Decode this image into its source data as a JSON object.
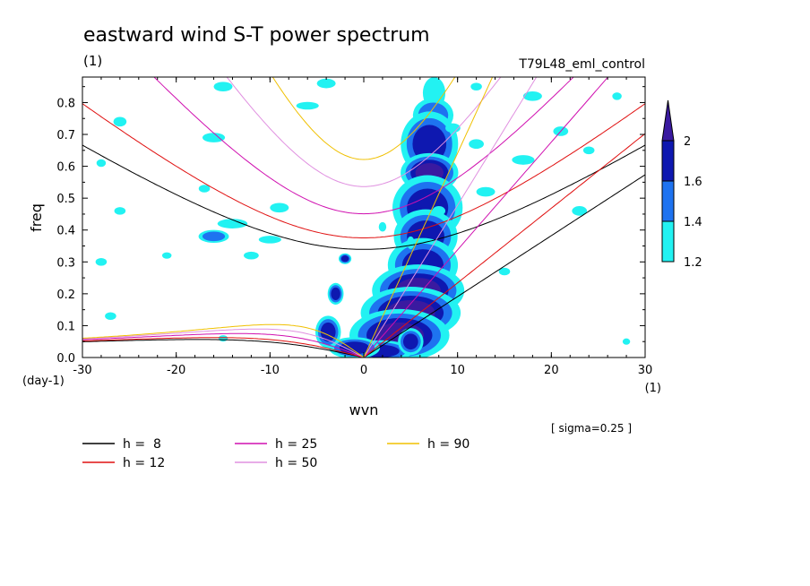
{
  "chart_data": {
    "type": "heatmap",
    "title": "eastward wind S-T power spectrum",
    "subtitle_left": "(1)",
    "subtitle_right": "T79L48_eml_control",
    "xlabel": "wvn",
    "ylabel": "freq",
    "x_unit": "(1)",
    "y_unit": "(day-1)",
    "xlim": [
      -30,
      30
    ],
    "ylim": [
      0,
      0.88
    ],
    "x_ticks": [
      -30,
      -20,
      -10,
      0,
      10,
      20,
      30
    ],
    "y_ticks": [
      0.0,
      0.1,
      0.2,
      0.3,
      0.4,
      0.5,
      0.6,
      0.7,
      0.8
    ],
    "x_tick_labels": [
      "-30",
      "-20",
      "-10",
      "0",
      "10",
      "20",
      "30"
    ],
    "y_tick_labels": [
      "0.0",
      "0.1",
      "0.2",
      "0.3",
      "0.4",
      "0.5",
      "0.6",
      "0.7",
      "0.8"
    ],
    "note": "[ sigma=0.25 ]",
    "colorbar": {
      "levels": [
        1.2,
        1.4,
        1.6,
        2
      ],
      "level_labels": [
        "1.2",
        "1.4",
        "1.6",
        "2"
      ],
      "colors": [
        "#22f2f2",
        "#1e73f0",
        "#0e18b0",
        "#3a1aa0"
      ]
    },
    "dispersion_curves": [
      {
        "label": "h =  8",
        "h": 8,
        "color": "#000000"
      },
      {
        "label": "h = 12",
        "h": 12,
        "color": "#e01010"
      },
      {
        "label": "h = 25",
        "h": 25,
        "color": "#d010b0"
      },
      {
        "label": "h = 50",
        "h": 50,
        "color": "#e090e0"
      },
      {
        "label": "h = 90",
        "h": 90,
        "color": "#f0c000"
      }
    ],
    "contour_regions": [
      {
        "x": 7.5,
        "y": 0.83,
        "rx": 1.2,
        "ry": 0.05,
        "level": 1.2
      },
      {
        "x": 7.4,
        "y": 0.76,
        "rx": 1.6,
        "ry": 0.04,
        "level": 1.4
      },
      {
        "x": 7.0,
        "y": 0.67,
        "rx": 1.8,
        "ry": 0.06,
        "level": 1.6
      },
      {
        "x": 7.0,
        "y": 0.58,
        "rx": 1.5,
        "ry": 0.03,
        "level": 2
      },
      {
        "x": 6.8,
        "y": 0.47,
        "rx": 2.2,
        "ry": 0.06,
        "level": 1.6
      },
      {
        "x": 6.6,
        "y": 0.38,
        "rx": 2.0,
        "ry": 0.05,
        "level": 1.6
      },
      {
        "x": 6.3,
        "y": 0.29,
        "rx": 2.2,
        "ry": 0.05,
        "level": 1.6
      },
      {
        "x": 5.8,
        "y": 0.21,
        "rx": 2.4,
        "ry": 0.04,
        "level": 2
      },
      {
        "x": 5.0,
        "y": 0.14,
        "rx": 2.6,
        "ry": 0.04,
        "level": 2
      },
      {
        "x": 3.8,
        "y": 0.07,
        "rx": 2.6,
        "ry": 0.04,
        "level": 2
      },
      {
        "x": 1.8,
        "y": 0.02,
        "rx": 2.0,
        "ry": 0.02,
        "level": 1.6
      },
      {
        "x": -1.0,
        "y": 0.03,
        "rx": 1.6,
        "ry": 0.02,
        "level": 1.6
      },
      {
        "x": -3.8,
        "y": 0.08,
        "rx": 0.8,
        "ry": 0.03,
        "level": 1.6
      },
      {
        "x": 5.0,
        "y": 0.05,
        "rx": 0.8,
        "ry": 0.025,
        "level": 1.6
      },
      {
        "x": -3.0,
        "y": 0.2,
        "rx": 0.5,
        "ry": 0.02,
        "level": 1.6
      },
      {
        "x": -2.0,
        "y": 0.31,
        "rx": 0.4,
        "ry": 0.01,
        "level": 1.6
      },
      {
        "x": -14.0,
        "y": 0.42,
        "rx": 1.6,
        "ry": 0.015,
        "level": 1.2
      },
      {
        "x": -16.0,
        "y": 0.38,
        "rx": 1.2,
        "ry": 0.015,
        "level": 1.4
      },
      {
        "x": -12.0,
        "y": 0.32,
        "rx": 0.8,
        "ry": 0.012,
        "level": 1.2
      },
      {
        "x": -10.0,
        "y": 0.37,
        "rx": 1.2,
        "ry": 0.012,
        "level": 1.2
      },
      {
        "x": -28.0,
        "y": 0.3,
        "rx": 0.6,
        "ry": 0.012,
        "level": 1.2
      },
      {
        "x": -26.0,
        "y": 0.46,
        "rx": 0.6,
        "ry": 0.012,
        "level": 1.2
      },
      {
        "x": -28.0,
        "y": 0.61,
        "rx": 0.5,
        "ry": 0.012,
        "level": 1.2
      },
      {
        "x": -26.0,
        "y": 0.74,
        "rx": 0.7,
        "ry": 0.015,
        "level": 1.2
      },
      {
        "x": -15.0,
        "y": 0.85,
        "rx": 1.0,
        "ry": 0.015,
        "level": 1.2
      },
      {
        "x": -16.0,
        "y": 0.69,
        "rx": 1.2,
        "ry": 0.015,
        "level": 1.2
      },
      {
        "x": -6.0,
        "y": 0.79,
        "rx": 1.2,
        "ry": 0.012,
        "level": 1.2
      },
      {
        "x": -9.0,
        "y": 0.47,
        "rx": 1.0,
        "ry": 0.015,
        "level": 1.2
      },
      {
        "x": -17.0,
        "y": 0.53,
        "rx": 0.6,
        "ry": 0.012,
        "level": 1.2
      },
      {
        "x": -21.0,
        "y": 0.32,
        "rx": 0.5,
        "ry": 0.01,
        "level": 1.2
      },
      {
        "x": -27.0,
        "y": 0.13,
        "rx": 0.6,
        "ry": 0.012,
        "level": 1.2
      },
      {
        "x": -15.0,
        "y": 0.06,
        "rx": 0.5,
        "ry": 0.01,
        "level": 1.2
      },
      {
        "x": -4.0,
        "y": 0.86,
        "rx": 1.0,
        "ry": 0.015,
        "level": 1.2
      },
      {
        "x": 2.0,
        "y": 0.41,
        "rx": 0.4,
        "ry": 0.015,
        "level": 1.2
      },
      {
        "x": 5.0,
        "y": 0.36,
        "rx": 0.4,
        "ry": 0.02,
        "level": 1.2
      },
      {
        "x": 8.0,
        "y": 0.46,
        "rx": 0.7,
        "ry": 0.015,
        "level": 1.2
      },
      {
        "x": 9.5,
        "y": 0.72,
        "rx": 0.8,
        "ry": 0.015,
        "level": 1.2
      },
      {
        "x": 12.0,
        "y": 0.67,
        "rx": 0.8,
        "ry": 0.015,
        "level": 1.2
      },
      {
        "x": 13.0,
        "y": 0.52,
        "rx": 1.0,
        "ry": 0.015,
        "level": 1.2
      },
      {
        "x": 18.0,
        "y": 0.82,
        "rx": 1.0,
        "ry": 0.015,
        "level": 1.2
      },
      {
        "x": 21.0,
        "y": 0.71,
        "rx": 0.8,
        "ry": 0.015,
        "level": 1.2
      },
      {
        "x": 24.0,
        "y": 0.65,
        "rx": 0.6,
        "ry": 0.012,
        "level": 1.2
      },
      {
        "x": 23.0,
        "y": 0.46,
        "rx": 0.8,
        "ry": 0.015,
        "level": 1.2
      },
      {
        "x": 15.0,
        "y": 0.27,
        "rx": 0.6,
        "ry": 0.012,
        "level": 1.2
      },
      {
        "x": 17.0,
        "y": 0.62,
        "rx": 1.2,
        "ry": 0.015,
        "level": 1.2
      },
      {
        "x": 12.0,
        "y": 0.85,
        "rx": 0.6,
        "ry": 0.012,
        "level": 1.2
      },
      {
        "x": 27.0,
        "y": 0.82,
        "rx": 0.5,
        "ry": 0.012,
        "level": 1.2
      },
      {
        "x": 28.0,
        "y": 0.05,
        "rx": 0.4,
        "ry": 0.01,
        "level": 1.2
      }
    ]
  }
}
